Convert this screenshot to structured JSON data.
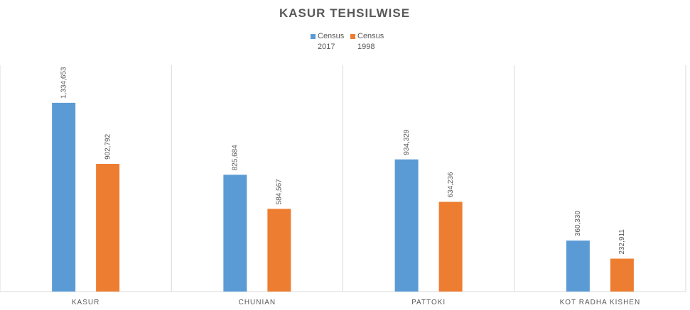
{
  "chart_data": {
    "type": "bar",
    "title": "KASUR TEHSILWISE",
    "categories": [
      "KASUR",
      "CHUNIAN",
      "PATTOKI",
      "KOT RADHA KISHEN"
    ],
    "series": [
      {
        "name": "Census 2017",
        "color": "#5b9bd5",
        "values": [
          1334653,
          825684,
          934329,
          360330
        ],
        "value_labels": [
          "1,334,653",
          "825,684",
          "934,329",
          "360,330"
        ]
      },
      {
        "name": "Census 1998",
        "color": "#ed7d31",
        "values": [
          902792,
          584567,
          634236,
          232911
        ],
        "value_labels": [
          "902,792",
          "584,567",
          "634,236",
          "232,911"
        ]
      }
    ],
    "ylim": [
      0,
      1600000
    ]
  }
}
